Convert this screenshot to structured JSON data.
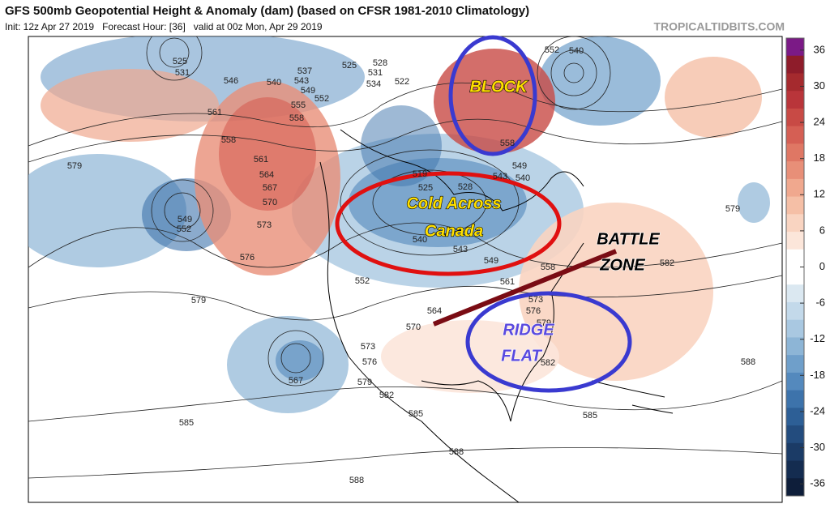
{
  "header": {
    "title": "GFS 500mb Geopotential Height & Anomaly (dam) (based on CFSR 1981-2010 Climatology)",
    "subtitle": "Init: 12z Apr 27 2019   Forecast Hour: [36]   valid at 00z Mon, Apr 29 2019",
    "source": "TROPICALTIDBITS.COM"
  },
  "colorbar": {
    "range": [
      -38,
      38
    ],
    "ticks": [
      36,
      30,
      24,
      18,
      12,
      6,
      0,
      -6,
      -12,
      -18,
      -24,
      -30,
      -36
    ],
    "colors": [
      "#7b1a86",
      "#8e1c2a",
      "#a52a2e",
      "#b9353a",
      "#c84a45",
      "#d55f54",
      "#df7764",
      "#e88f78",
      "#f0a88e",
      "#f5bfa6",
      "#f9d4c1",
      "#fce6da",
      "#ffffff",
      "#ffffff",
      "#dbe8f1",
      "#c3d9ea",
      "#a9c8e1",
      "#8db5d6",
      "#6f9fca",
      "#5489bd",
      "#3d73ab",
      "#2d5f96",
      "#234c7e",
      "#1b3b66",
      "#142c50",
      "#0e1e3a"
    ]
  },
  "annotations": {
    "block": "BLOCK",
    "cold": [
      "Cold Across",
      "Canada"
    ],
    "battle": [
      "BATTLE",
      "ZONE"
    ],
    "ridge": [
      "RIDGE",
      "FLAT"
    ]
  },
  "contour_labels": [
    525,
    531,
    546,
    540,
    543,
    537,
    549,
    552,
    555,
    558,
    561,
    558,
    561,
    564,
    567,
    570,
    573,
    576,
    579,
    549,
    552,
    579,
    567,
    573,
    576,
    579,
    582,
    585,
    585,
    588,
    588,
    585,
    588,
    582,
    579,
    525,
    528,
    531,
    534,
    522,
    540,
    552,
    558,
    549,
    543,
    540,
    528,
    525,
    540,
    543,
    549,
    552,
    564,
    570,
    561,
    573,
    576,
    579,
    582,
    558,
    519
  ]
}
